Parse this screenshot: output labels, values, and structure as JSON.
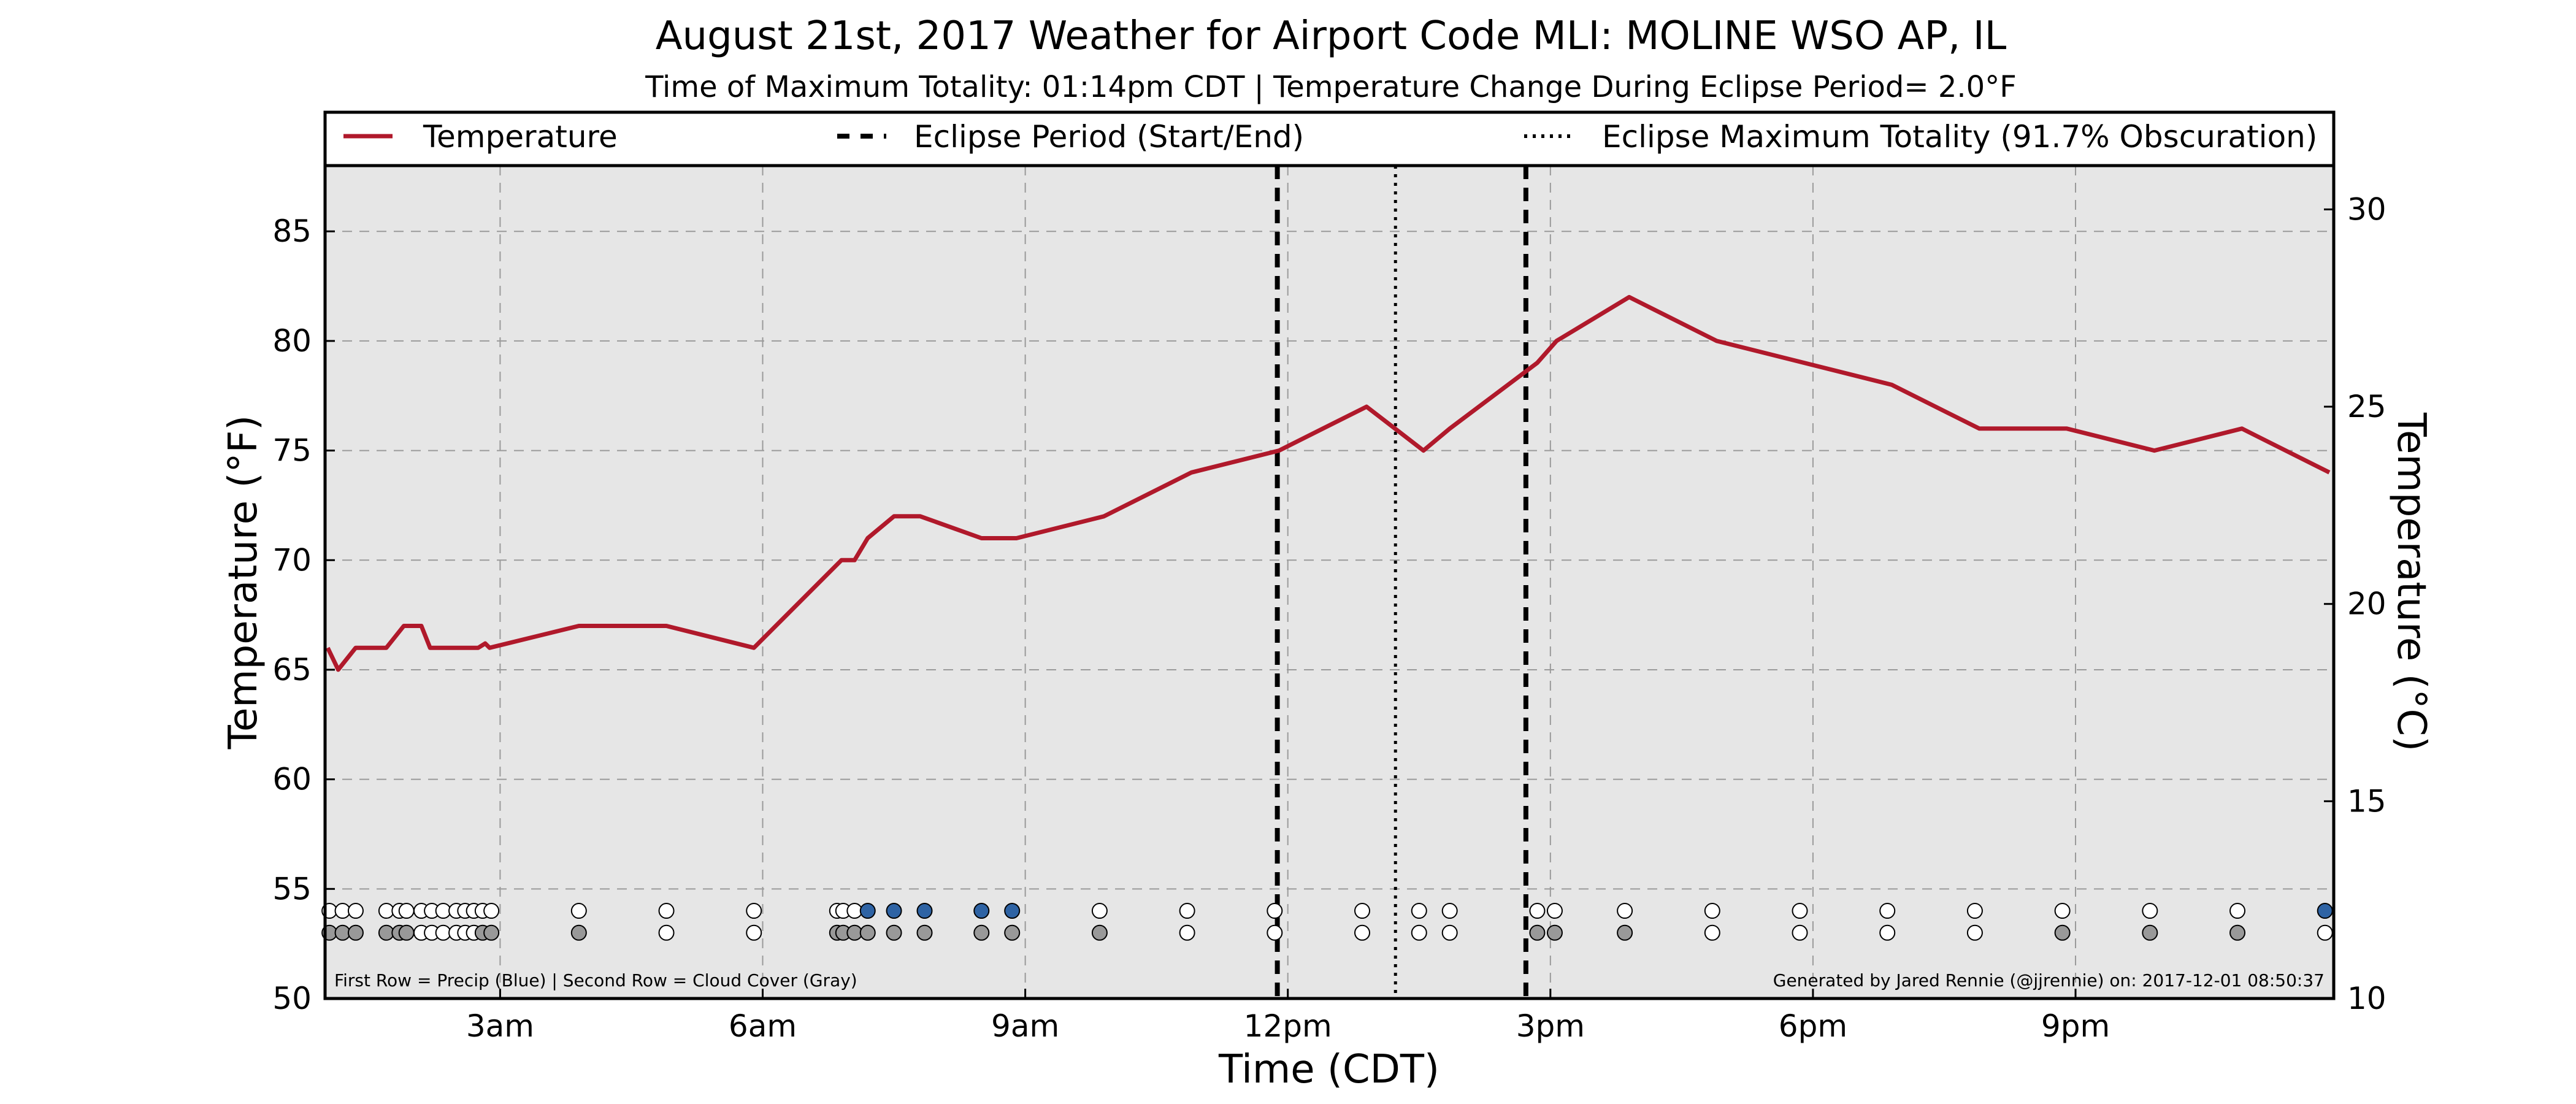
{
  "title": "August 21st, 2017 Weather for Airport Code MLI: MOLINE WSO AP, IL",
  "subtitle": "Time of Maximum Totality: 01:14pm CDT | Temperature Change During Eclipse Period= 2.0°F",
  "legend": {
    "temperature": "Temperature",
    "eclipse_period": "Eclipse Period (Start/End)",
    "eclipse_max": "Eclipse Maximum Totality (91.7% Obscuration)"
  },
  "footnote_left": "First Row = Precip (Blue) | Second Row = Cloud Cover (Gray)",
  "footnote_right": "Generated by Jared Rennie (@jjrennie) on: 2017-12-01 08:50:37",
  "colors": {
    "line": "#B0192B",
    "plot_bg": "#E6E6E6",
    "precip": "#2E63A4",
    "cloud": "#999999",
    "empty": "#FFFFFF"
  },
  "chart_data": {
    "type": "line",
    "xlabel": "Time (CDT)",
    "ylabel": "Temperature (°F)",
    "y2label": "Temperature (°C)",
    "xlim": [
      1.0,
      23.95
    ],
    "ylim": [
      50,
      88
    ],
    "y2lim": [
      10,
      31.11
    ],
    "grid": true,
    "legend_position": "top",
    "x_ticks": [
      {
        "value": 3,
        "label": "3am"
      },
      {
        "value": 6,
        "label": "6am"
      },
      {
        "value": 9,
        "label": "9am"
      },
      {
        "value": 12,
        "label": "12pm"
      },
      {
        "value": 15,
        "label": "3pm"
      },
      {
        "value": 18,
        "label": "6pm"
      },
      {
        "value": 21,
        "label": "9pm"
      }
    ],
    "y_ticks": [
      50,
      55,
      60,
      65,
      70,
      75,
      80,
      85
    ],
    "y2_ticks": [
      10,
      15,
      20,
      25,
      30
    ],
    "eclipse_start": 11.88,
    "eclipse_max": 13.23,
    "eclipse_end": 14.72,
    "series": [
      {
        "name": "Temperature",
        "x": [
          1.03,
          1.15,
          1.35,
          1.7,
          1.9,
          2.1,
          2.2,
          2.75,
          2.83,
          2.88,
          3.9,
          4.9,
          5.9,
          6.9,
          7.05,
          7.2,
          7.5,
          7.8,
          8.5,
          8.9,
          9.9,
          10.9,
          11.9,
          12.9,
          13.55,
          13.85,
          14.85,
          15.07,
          15.9,
          16.9,
          17.9,
          18.9,
          19.9,
          20.9,
          21.9,
          22.9,
          23.9
        ],
        "y": [
          66,
          65,
          66,
          66,
          67,
          67,
          66,
          66,
          66.2,
          66,
          67,
          67,
          66,
          70,
          70,
          71,
          72,
          72,
          71,
          71,
          72,
          74,
          75,
          77,
          75,
          76,
          79,
          80,
          82,
          80,
          79,
          78,
          76,
          76,
          75,
          76,
          74
        ]
      }
    ],
    "precip_row": [
      {
        "x": 1.05,
        "rain": false
      },
      {
        "x": 1.2,
        "rain": false
      },
      {
        "x": 1.35,
        "rain": false
      },
      {
        "x": 1.7,
        "rain": false
      },
      {
        "x": 1.85,
        "rain": false
      },
      {
        "x": 1.93,
        "rain": false
      },
      {
        "x": 2.1,
        "rain": false
      },
      {
        "x": 2.22,
        "rain": false
      },
      {
        "x": 2.35,
        "rain": false
      },
      {
        "x": 2.5,
        "rain": false
      },
      {
        "x": 2.6,
        "rain": false
      },
      {
        "x": 2.7,
        "rain": false
      },
      {
        "x": 2.8,
        "rain": false
      },
      {
        "x": 2.9,
        "rain": false
      },
      {
        "x": 3.9,
        "rain": false
      },
      {
        "x": 4.9,
        "rain": false
      },
      {
        "x": 5.9,
        "rain": false
      },
      {
        "x": 6.85,
        "rain": false
      },
      {
        "x": 6.92,
        "rain": false
      },
      {
        "x": 7.05,
        "rain": false
      },
      {
        "x": 7.2,
        "rain": true
      },
      {
        "x": 7.5,
        "rain": true
      },
      {
        "x": 7.85,
        "rain": true
      },
      {
        "x": 8.5,
        "rain": true
      },
      {
        "x": 8.85,
        "rain": true
      },
      {
        "x": 9.85,
        "rain": false
      },
      {
        "x": 10.85,
        "rain": false
      },
      {
        "x": 11.85,
        "rain": false
      },
      {
        "x": 12.85,
        "rain": false
      },
      {
        "x": 13.5,
        "rain": false
      },
      {
        "x": 13.85,
        "rain": false
      },
      {
        "x": 14.85,
        "rain": false
      },
      {
        "x": 15.05,
        "rain": false
      },
      {
        "x": 15.85,
        "rain": false
      },
      {
        "x": 16.85,
        "rain": false
      },
      {
        "x": 17.85,
        "rain": false
      },
      {
        "x": 18.85,
        "rain": false
      },
      {
        "x": 19.85,
        "rain": false
      },
      {
        "x": 20.85,
        "rain": false
      },
      {
        "x": 21.85,
        "rain": false
      },
      {
        "x": 22.85,
        "rain": false
      },
      {
        "x": 23.85,
        "rain": true
      }
    ],
    "cloud_row": [
      {
        "x": 1.05,
        "cloudy": true
      },
      {
        "x": 1.2,
        "cloudy": true
      },
      {
        "x": 1.35,
        "cloudy": true
      },
      {
        "x": 1.7,
        "cloudy": true
      },
      {
        "x": 1.85,
        "cloudy": true
      },
      {
        "x": 1.93,
        "cloudy": true
      },
      {
        "x": 2.1,
        "cloudy": false
      },
      {
        "x": 2.22,
        "cloudy": false
      },
      {
        "x": 2.35,
        "cloudy": false
      },
      {
        "x": 2.5,
        "cloudy": false
      },
      {
        "x": 2.6,
        "cloudy": false
      },
      {
        "x": 2.7,
        "cloudy": false
      },
      {
        "x": 2.8,
        "cloudy": true
      },
      {
        "x": 2.9,
        "cloudy": true
      },
      {
        "x": 3.9,
        "cloudy": true
      },
      {
        "x": 4.9,
        "cloudy": false
      },
      {
        "x": 5.9,
        "cloudy": false
      },
      {
        "x": 6.85,
        "cloudy": true
      },
      {
        "x": 6.92,
        "cloudy": true
      },
      {
        "x": 7.05,
        "cloudy": true
      },
      {
        "x": 7.2,
        "cloudy": true
      },
      {
        "x": 7.5,
        "cloudy": true
      },
      {
        "x": 7.85,
        "cloudy": true
      },
      {
        "x": 8.5,
        "cloudy": true
      },
      {
        "x": 8.85,
        "cloudy": true
      },
      {
        "x": 9.85,
        "cloudy": true
      },
      {
        "x": 10.85,
        "cloudy": false
      },
      {
        "x": 11.85,
        "cloudy": false
      },
      {
        "x": 12.85,
        "cloudy": false
      },
      {
        "x": 13.5,
        "cloudy": false
      },
      {
        "x": 13.85,
        "cloudy": false
      },
      {
        "x": 14.85,
        "cloudy": true
      },
      {
        "x": 15.05,
        "cloudy": true
      },
      {
        "x": 15.85,
        "cloudy": true
      },
      {
        "x": 16.85,
        "cloudy": false
      },
      {
        "x": 17.85,
        "cloudy": false
      },
      {
        "x": 18.85,
        "cloudy": false
      },
      {
        "x": 19.85,
        "cloudy": false
      },
      {
        "x": 20.85,
        "cloudy": true
      },
      {
        "x": 21.85,
        "cloudy": true
      },
      {
        "x": 22.85,
        "cloudy": true
      },
      {
        "x": 23.85,
        "cloudy": false
      }
    ]
  }
}
